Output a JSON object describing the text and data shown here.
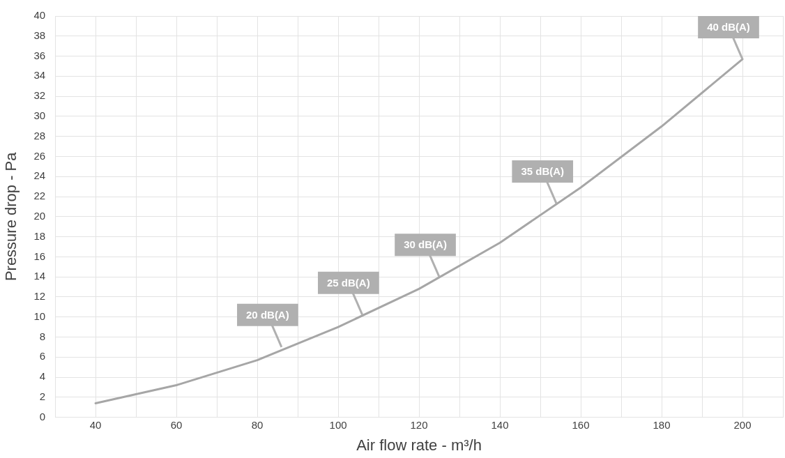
{
  "chart_data": {
    "type": "line",
    "xlabel": "Air flow rate - m³/h",
    "ylabel": "Pressure drop - Pa",
    "x": [
      40,
      60,
      80,
      100,
      120,
      140,
      160,
      180,
      200
    ],
    "series": [
      {
        "color": "#a6a6a6",
        "values": [
          1.4,
          3.2,
          5.7,
          9.0,
          12.8,
          17.4,
          22.9,
          29.0,
          35.7
        ]
      }
    ],
    "xlim": [
      30,
      210
    ],
    "xticks": [
      {
        "value": 30,
        "label": null
      },
      40,
      {
        "value": 50,
        "label": null
      },
      60,
      {
        "value": 70,
        "label": null
      },
      80,
      {
        "value": 90,
        "label": null
      },
      100,
      {
        "value": 110,
        "label": null
      },
      120,
      {
        "value": 130,
        "label": null
      },
      140,
      {
        "value": 150,
        "label": null
      },
      160,
      {
        "value": 170,
        "label": null
      },
      180,
      {
        "value": 190,
        "label": null
      },
      200,
      {
        "value": 210,
        "label": null
      }
    ],
    "ylim": [
      0,
      40
    ],
    "yticks": [
      0,
      2,
      4,
      6,
      8,
      10,
      12,
      14,
      16,
      18,
      20,
      22,
      24,
      26,
      28,
      30,
      32,
      34,
      36,
      38,
      40
    ],
    "grid": true,
    "legend": false,
    "marker": "none",
    "line_style": "solid",
    "annotations": [
      {
        "text": "20 dB(A)",
        "x": 86,
        "y": 7.0
      },
      {
        "text": "25 dB(A)",
        "x": 106,
        "y": 10.2
      },
      {
        "text": "30 dB(A)",
        "x": 125,
        "y": 14.0
      },
      {
        "text": "35 dB(A)",
        "x": 154,
        "y": 21.3
      },
      {
        "text": "40 dB(A)",
        "x": 200,
        "y": 35.7
      }
    ]
  }
}
